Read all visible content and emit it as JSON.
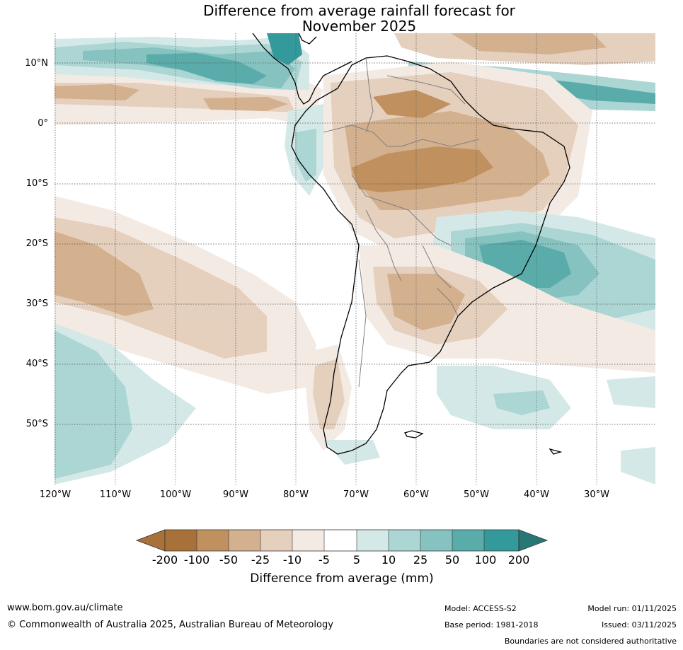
{
  "title": {
    "line1": "Difference from average rainfall forecast for",
    "line2": "November 2025"
  },
  "map": {
    "lat_labels": [
      "10°N",
      "0°",
      "10°S",
      "20°S",
      "30°S",
      "40°S",
      "50°S"
    ],
    "lon_labels": [
      "120°W",
      "110°W",
      "100°W",
      "90°W",
      "80°W",
      "70°W",
      "60°W",
      "50°W",
      "40°W",
      "30°W"
    ],
    "colors": {
      "m200": "#a9713a",
      "m100": "#c0905f",
      "m50": "#d3b08e",
      "m25": "#e5cfbd",
      "m10": "#f4eae4",
      "neutral": "#ffffff",
      "p5": "#d4e9e7",
      "p10": "#abd6d4",
      "p25": "#86c2c0",
      "p50": "#5aacaa",
      "p100": "#34999a",
      "p200": "#277874",
      "land_outline": "#000000",
      "border": "#808080"
    }
  },
  "colorbar": {
    "ticks": [
      "-200",
      "-100",
      "-50",
      "-25",
      "-10",
      "-5",
      "5",
      "10",
      "25",
      "50",
      "100",
      "200"
    ],
    "label": "Difference from average (mm)"
  },
  "footer": {
    "website": "www.bom.gov.au/climate",
    "copyright": "© Commonwealth of Australia 2025, Australian Bureau of Meteorology",
    "model": "Model: ACCESS-S2",
    "base_period": "Base period: 1981-2018",
    "model_run": "Model run: 01/11/2025",
    "issued": "Issued: 03/11/2025",
    "disclaimer": "Boundaries are not considered authoritative"
  }
}
